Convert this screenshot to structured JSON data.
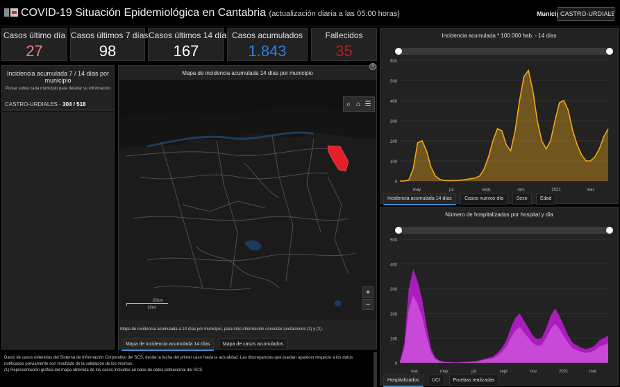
{
  "header": {
    "title": "COVID-19 Situación Epidemiológica en Cantabria",
    "subtitle": "(actualización diaria a las 05:00 horas)",
    "municipio_label": "Municipio",
    "municipio_value": "CASTRO-URDIALES"
  },
  "kpis": [
    {
      "label": "Casos último día",
      "value": "27",
      "color": "#f28080"
    },
    {
      "label": "Casos últimos 7 días",
      "value": "98",
      "color": "#ffffff"
    },
    {
      "label": "Casos últimos 14 días",
      "value": "167",
      "color": "#ffffff"
    },
    {
      "label": "Casos acumulados",
      "value": "1.843",
      "color": "#2f7fe6"
    },
    {
      "label": "Fallecidos",
      "value": "35",
      "color": "#b51f1f"
    }
  ],
  "list": {
    "title": "Incidencia acumulada 7 / 14 días por municipio",
    "hint": "Pulsar sobre cada municipio para detallar su información",
    "row_name": "CASTRO-URDIALES - ",
    "row_values": "304 / 518"
  },
  "map": {
    "title": "Mapa de incidencia acumulada 14 días por municipio",
    "footnote": "Mapa de incidencia acumulada a 14 días por municipio, para más información consultar anotaciones (1) y (2).",
    "scale_km": "20km",
    "scale_mi": "10mi",
    "zoom_in": "+",
    "zoom_out": "−",
    "close": "×",
    "tabs": [
      "Mapa de incidencia acumulada 14 días",
      "Mapa de casos acumulados"
    ],
    "highlight_color": "#e3202a"
  },
  "chart1": {
    "title": "Incidencia acumulada * 100.000 hab. - 14 días",
    "tabs": [
      "Incidencia acumulada 14 días",
      "Casos nuevos día",
      "Sexo",
      "Edad"
    ]
  },
  "chart2": {
    "title": "Número de hospitalizados por hospital y día",
    "tabs": [
      "Hospitalizados",
      "UCI",
      "Pruebas realizadas"
    ]
  },
  "notes": {
    "p1": "Datos de casos obtenidos del Sistema de Información Corporativo del SCS, desde la fecha del primer caso hasta la actualidad. Las discrepancias que puedan aparecer respecto a los datos notificados previamente son resultado de la validación de los mismos.",
    "p2": "(1) Representación gráfica del mapa obtenida de los casos incluidos en base de datos poblacional del SCS."
  },
  "chart_data": [
    {
      "type": "area",
      "title": "Incidencia acumulada * 100.000 hab. - 14 días",
      "ylim": [
        0,
        600
      ],
      "yticks": [
        0,
        100,
        200,
        300,
        400,
        500,
        600
      ],
      "xticks": [
        "may.",
        "jul.",
        "sept.",
        "nov.",
        "2021",
        "mar."
      ],
      "color": "#f2a818",
      "series": [
        {
          "values": [
            0,
            0,
            5,
            60,
            190,
            200,
            150,
            70,
            25,
            8,
            3,
            2,
            2,
            3,
            5,
            8,
            12,
            15,
            25,
            60,
            120,
            200,
            260,
            250,
            180,
            150,
            250,
            400,
            520,
            550,
            450,
            300,
            200,
            160,
            200,
            300,
            390,
            400,
            350,
            250,
            180,
            130,
            100,
            100,
            120,
            160,
            220,
            260
          ]
        }
      ]
    },
    {
      "type": "area",
      "title": "Número de hospitalizados por hospital y día",
      "ylim": [
        0,
        500
      ],
      "yticks": [
        0,
        100,
        200,
        300,
        400,
        500
      ],
      "xticks": [
        "mar.",
        "may.",
        "jul.",
        "sept.",
        "nov.",
        "2021",
        "mar."
      ],
      "color": "#b01ec4",
      "series": [
        {
          "values": [
            5,
            80,
            300,
            380,
            330,
            260,
            150,
            60,
            20,
            8,
            4,
            3,
            2,
            2,
            3,
            4,
            5,
            6,
            10,
            15,
            20,
            25,
            40,
            60,
            90,
            140,
            180,
            200,
            170,
            140,
            110,
            95,
            100,
            140,
            190,
            220,
            190,
            150,
            110,
            80,
            70,
            60,
            55,
            60,
            70,
            90,
            100,
            110
          ]
        }
      ]
    }
  ]
}
